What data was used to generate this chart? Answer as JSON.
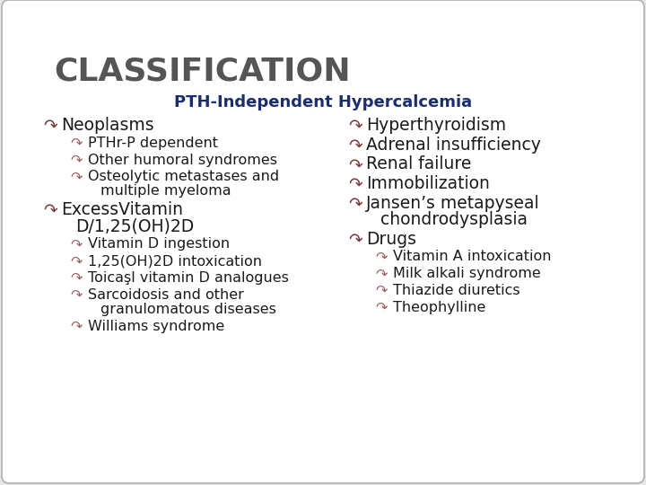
{
  "title": "CLASSIFICATION",
  "subtitle": "PTH-Independent Hypercalcemia",
  "bg_color": "#e8e8e8",
  "slide_bg": "#ffffff",
  "title_color": "#555555",
  "subtitle_color": "#1a2e6e",
  "bullet_color_l0": "#7a3b3b",
  "bullet_color_l1": "#9a6060",
  "text_color": "#1a1a1a",
  "left_column": [
    {
      "level": 0,
      "text": "Neoplasms",
      "multiline": false
    },
    {
      "level": 1,
      "text": "PTHr-P dependent",
      "multiline": false
    },
    {
      "level": 1,
      "text": "Other humoral syndromes",
      "multiline": false
    },
    {
      "level": 1,
      "text": "Osteolytic metastases and",
      "extra": "multiple myeloma",
      "multiline": true
    },
    {
      "level": 0,
      "text": "ExcessVitamin",
      "extra": "D/1,25(OH)2D",
      "multiline": true
    },
    {
      "level": 1,
      "text": "Vitamin D ingestion",
      "multiline": false
    },
    {
      "level": 1,
      "text": "1,25(OH)2D intoxication",
      "multiline": false
    },
    {
      "level": 1,
      "text": "Toicaşl vitamin D analogues",
      "multiline": false
    },
    {
      "level": 1,
      "text": "Sarcoidosis and other",
      "extra": "granulomatous diseases",
      "multiline": true
    },
    {
      "level": 1,
      "text": "Williams syndrome",
      "multiline": false
    }
  ],
  "right_column": [
    {
      "level": 0,
      "text": "Hyperthyroidism",
      "multiline": false
    },
    {
      "level": 0,
      "text": "Adrenal insufficiency",
      "multiline": false
    },
    {
      "level": 0,
      "text": "Renal failure",
      "multiline": false
    },
    {
      "level": 0,
      "text": "Immobilization",
      "multiline": false
    },
    {
      "level": 0,
      "text": "Jansen’s metapyseal",
      "extra": "chondrodysplasia",
      "multiline": true
    },
    {
      "level": 0,
      "text": "Drugs",
      "multiline": false
    },
    {
      "level": 1,
      "text": "Vitamin A intoxication",
      "multiline": false
    },
    {
      "level": 1,
      "text": "Milk alkali syndrome",
      "multiline": false
    },
    {
      "level": 1,
      "text": "Thiazide diuretics",
      "multiline": false
    },
    {
      "level": 1,
      "text": "Theophylline",
      "multiline": false
    }
  ]
}
